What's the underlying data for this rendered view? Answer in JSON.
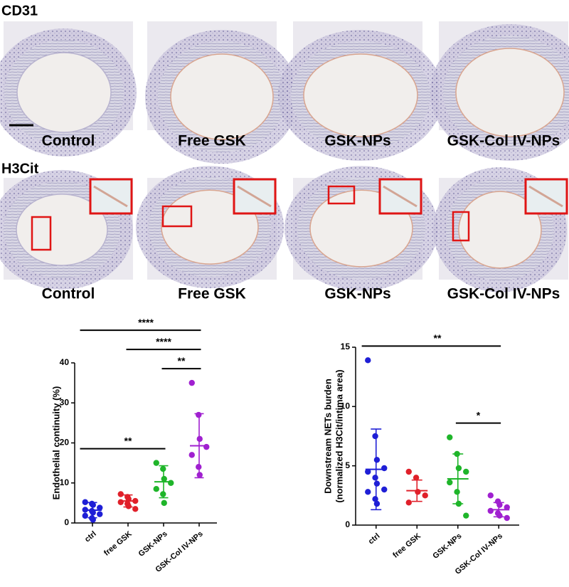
{
  "panels": {
    "rows": [
      {
        "marker": "CD31",
        "captions": [
          "Control",
          "Free GSK",
          "GSK-NPs",
          "GSK-Col IV-NPs"
        ]
      },
      {
        "marker": "H3Cit",
        "captions": [
          "Control",
          "Free GSK",
          "GSK-NPs",
          "GSK-Col IV-NPs"
        ]
      }
    ]
  },
  "chart_data": [
    {
      "type": "dotplot",
      "ylabel": [
        "Endothelial continuity (%)"
      ],
      "ylim": [
        0,
        40
      ],
      "yticks": [
        0,
        10,
        20,
        30,
        40
      ],
      "series": [
        {
          "name": "ctrl",
          "color": "#1f1fd6",
          "values": [
            5.2,
            4.8,
            4.5,
            3.8,
            3.3,
            3.0,
            2.6,
            2.2,
            1.8,
            1.2,
            0.8
          ],
          "mean": 3.2,
          "sd": 1.9
        },
        {
          "name": "free GSK",
          "color": "#e0202a",
          "values": [
            7.2,
            6.5,
            6.0,
            5.5,
            5.2,
            4.8,
            4.2,
            3.5
          ],
          "mean": 5.5,
          "sd": 1.5
        },
        {
          "name": "GSK-NPs",
          "color": "#1fb52a",
          "values": [
            15.0,
            13.5,
            11.0,
            10.0,
            8.5,
            7.2,
            5.0
          ],
          "mean": 10.3,
          "sd": 4.0
        },
        {
          "name": "GSK-Col IV-NPs",
          "color": "#a020d0",
          "values": [
            35.0,
            27.0,
            21.0,
            19.0,
            17.0,
            14.0,
            12.0
          ],
          "mean": 19.3,
          "sd": 8.0
        }
      ],
      "annotations": [
        {
          "label": "**",
          "groups": [
            "ctrl",
            "GSK-NPs"
          ]
        },
        {
          "label": "**",
          "groups": [
            "GSK-NPs",
            "GSK-Col IV-NPs"
          ]
        },
        {
          "label": "****",
          "groups": [
            "free GSK",
            "GSK-Col IV-NPs"
          ]
        },
        {
          "label": "****",
          "groups": [
            "ctrl",
            "GSK-Col IV-NPs"
          ]
        }
      ]
    },
    {
      "type": "dotplot",
      "ylabel": [
        "Downstream NETs burden",
        "(normalized H3Cit/intima area)"
      ],
      "ylim": [
        0,
        15
      ],
      "yticks": [
        0,
        5,
        10,
        15
      ],
      "series": [
        {
          "name": "ctrl",
          "color": "#1f1fd6",
          "values": [
            13.9,
            7.5,
            5.5,
            4.8,
            4.5,
            4.0,
            3.5,
            3.0,
            2.8,
            2.2,
            1.8
          ],
          "mean": 4.7,
          "sd": 3.4
        },
        {
          "name": "free GSK",
          "color": "#e0202a",
          "values": [
            4.5,
            4.0,
            2.8,
            2.5,
            1.9
          ],
          "mean": 2.9,
          "sd": 0.9
        },
        {
          "name": "GSK-NPs",
          "color": "#1fb52a",
          "values": [
            7.4,
            6.0,
            4.8,
            4.5,
            3.6,
            2.8,
            1.8,
            0.8
          ],
          "mean": 3.9,
          "sd": 2.1
        },
        {
          "name": "GSK-Col IV-NPs",
          "color": "#a020d0",
          "values": [
            2.5,
            2.0,
            1.7,
            1.5,
            1.2,
            1.0,
            0.8,
            0.6
          ],
          "mean": 1.3,
          "sd": 0.6
        }
      ],
      "annotations": [
        {
          "label": "*",
          "groups": [
            "GSK-NPs",
            "GSK-Col IV-NPs"
          ]
        },
        {
          "label": "**",
          "groups": [
            "ctrl",
            "GSK-Col IV-NPs"
          ]
        }
      ]
    }
  ]
}
